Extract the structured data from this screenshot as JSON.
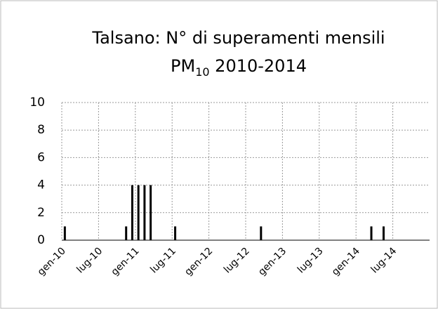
{
  "chart_data": {
    "type": "bar",
    "title": [
      "Talsano: N° di superamenti mensili",
      "PM",
      "10",
      " 2010-2014"
    ],
    "categories": [
      "gen-10",
      null,
      null,
      null,
      null,
      null,
      "lug-10",
      null,
      null,
      null,
      null,
      null,
      "gen-11",
      null,
      null,
      null,
      null,
      null,
      "lug-11",
      null,
      null,
      null,
      null,
      null,
      "gen-12",
      null,
      null,
      null,
      null,
      null,
      "lug-12",
      null,
      null,
      null,
      null,
      null,
      "gen-13",
      null,
      null,
      null,
      null,
      null,
      "lug-13",
      null,
      null,
      null,
      null,
      null,
      "gen-14",
      null,
      null,
      null,
      null,
      null,
      "lug-14",
      null,
      null,
      null,
      null,
      null
    ],
    "values": [
      1,
      0,
      0,
      0,
      0,
      0,
      0,
      0,
      0,
      0,
      1,
      4,
      4,
      4,
      4,
      0,
      0,
      0,
      1,
      0,
      0,
      0,
      0,
      0,
      0,
      0,
      0,
      0,
      0,
      0,
      0,
      0,
      1,
      0,
      0,
      0,
      0,
      0,
      0,
      0,
      0,
      0,
      0,
      0,
      0,
      0,
      0,
      0,
      0,
      0,
      1,
      0,
      1,
      0,
      0,
      0,
      0,
      0,
      0,
      0
    ],
    "color": "#000000",
    "ylim": [
      0,
      10
    ],
    "yticks": [
      0,
      2,
      4,
      6,
      8,
      10
    ],
    "grid": true
  }
}
